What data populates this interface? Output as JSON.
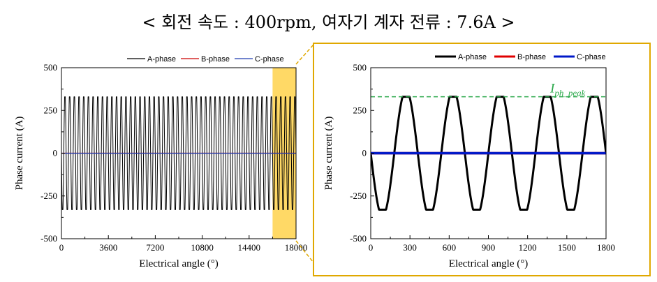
{
  "title": "< 회전 속도 : 400rpm, 여자기 계자 전류 : 7.6A >",
  "colors": {
    "highlight_fill": "#ffd966",
    "highlight_border": "#e0a800",
    "peak_line": "#2aa84a"
  },
  "chart_data": [
    {
      "type": "line",
      "xlabel": "Electrical angle (°)",
      "ylabel": "Phase current (A)",
      "xlim": [
        0,
        18000
      ],
      "ylim": [
        -500,
        500
      ],
      "xticks": [
        "0",
        "3600",
        "7200",
        "10800",
        "14400",
        "18000"
      ],
      "yticks": [
        "500",
        "250",
        "0",
        "-250",
        "-500"
      ],
      "legend": [
        "A-phase",
        "B-phase",
        "C-phase"
      ],
      "legend_position": "top",
      "series": [
        {
          "name": "A-phase",
          "color": "#000000",
          "amplitude": 330,
          "period_deg": 360
        },
        {
          "name": "B-phase",
          "color": "#cc0000",
          "values": [
            0
          ]
        },
        {
          "name": "C-phase",
          "color": "#1f3cb0",
          "values": [
            0
          ]
        }
      ],
      "highlight_range": [
        16200,
        18000
      ]
    },
    {
      "type": "line",
      "xlabel": "Electrical angle (°)",
      "ylabel": "Phase current (A)",
      "xlim": [
        0,
        1800
      ],
      "ylim": [
        -500,
        500
      ],
      "xticks": [
        "0",
        "300",
        "600",
        "900",
        "1200",
        "1500",
        "1800"
      ],
      "yticks": [
        "500",
        "250",
        "0",
        "-250",
        "-500"
      ],
      "legend": [
        "A-phase",
        "B-phase",
        "C-phase"
      ],
      "legend_position": "top",
      "series": [
        {
          "name": "A-phase",
          "color": "#000000",
          "amplitude": 330,
          "period_deg": 360
        },
        {
          "name": "B-phase",
          "color": "#e00000",
          "values": [
            0
          ]
        },
        {
          "name": "C-phase",
          "color": "#0018c8",
          "values": [
            0
          ]
        }
      ],
      "annotation": {
        "text": "I",
        "subscript": "ph_peak",
        "value": 330
      }
    }
  ]
}
